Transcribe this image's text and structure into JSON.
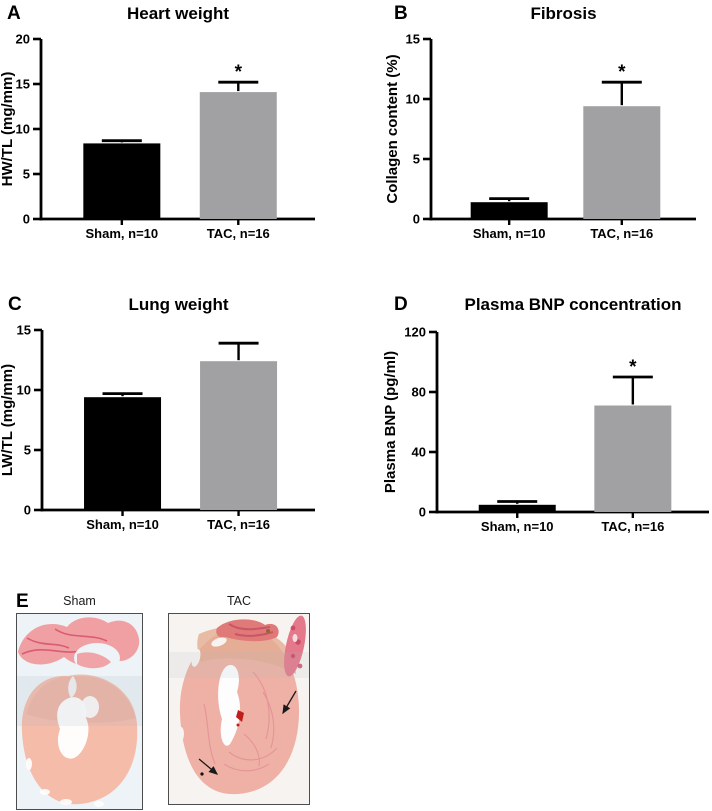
{
  "colors": {
    "bar_sham": "#000000",
    "bar_tac": "#a1a1a4",
    "axis": "#000000",
    "significance_marker": "*"
  },
  "chart_data": [
    {
      "panel": "A",
      "type": "bar",
      "title": "Heart weight",
      "ylabel": "HW/TL (mg/mm)",
      "xlabel": "",
      "ylim": [
        0,
        20
      ],
      "yticks": [
        0,
        5,
        10,
        15,
        20
      ],
      "categories": [
        "Sham, n=10",
        "TAC, n=16"
      ],
      "values": [
        8.4,
        14.1
      ],
      "errors_up": [
        0.3,
        1.1
      ],
      "significance": [
        "",
        "*"
      ],
      "legend": "none",
      "grid": false
    },
    {
      "panel": "B",
      "type": "bar",
      "title": "Fibrosis",
      "ylabel": "Collagen content (%)",
      "xlabel": "",
      "ylim": [
        0,
        15
      ],
      "yticks": [
        0,
        5,
        10,
        15
      ],
      "categories": [
        "Sham, n=10",
        "TAC, n=16"
      ],
      "values": [
        1.4,
        9.4
      ],
      "errors_up": [
        0.3,
        2.0
      ],
      "significance": [
        "",
        "*"
      ],
      "legend": "none",
      "grid": false
    },
    {
      "panel": "C",
      "type": "bar",
      "title": "Lung weight",
      "ylabel": "LW/TL (mg/mm)",
      "xlabel": "",
      "ylim": [
        0,
        15
      ],
      "yticks": [
        0,
        5,
        10,
        15
      ],
      "categories": [
        "Sham, n=10",
        "TAC, n=16"
      ],
      "values": [
        9.4,
        12.4
      ],
      "errors_up": [
        0.3,
        1.5
      ],
      "significance": [
        "",
        ""
      ],
      "legend": "none",
      "grid": false
    },
    {
      "panel": "D",
      "type": "bar",
      "title": "Plasma BNP concentration",
      "ylabel": "Plasma BNP (pg/ml)",
      "xlabel": "",
      "ylim": [
        0,
        120
      ],
      "yticks": [
        0,
        40,
        80,
        120
      ],
      "categories": [
        "Sham, n=10",
        "TAC, n=16"
      ],
      "values": [
        4.8,
        71
      ],
      "errors_up": [
        2.2,
        19
      ],
      "significance": [
        "",
        "*"
      ],
      "legend": "none",
      "grid": false
    }
  ],
  "histology": {
    "panel": "E",
    "images": [
      {
        "label": "Sham"
      },
      {
        "label": "TAC"
      }
    ]
  }
}
